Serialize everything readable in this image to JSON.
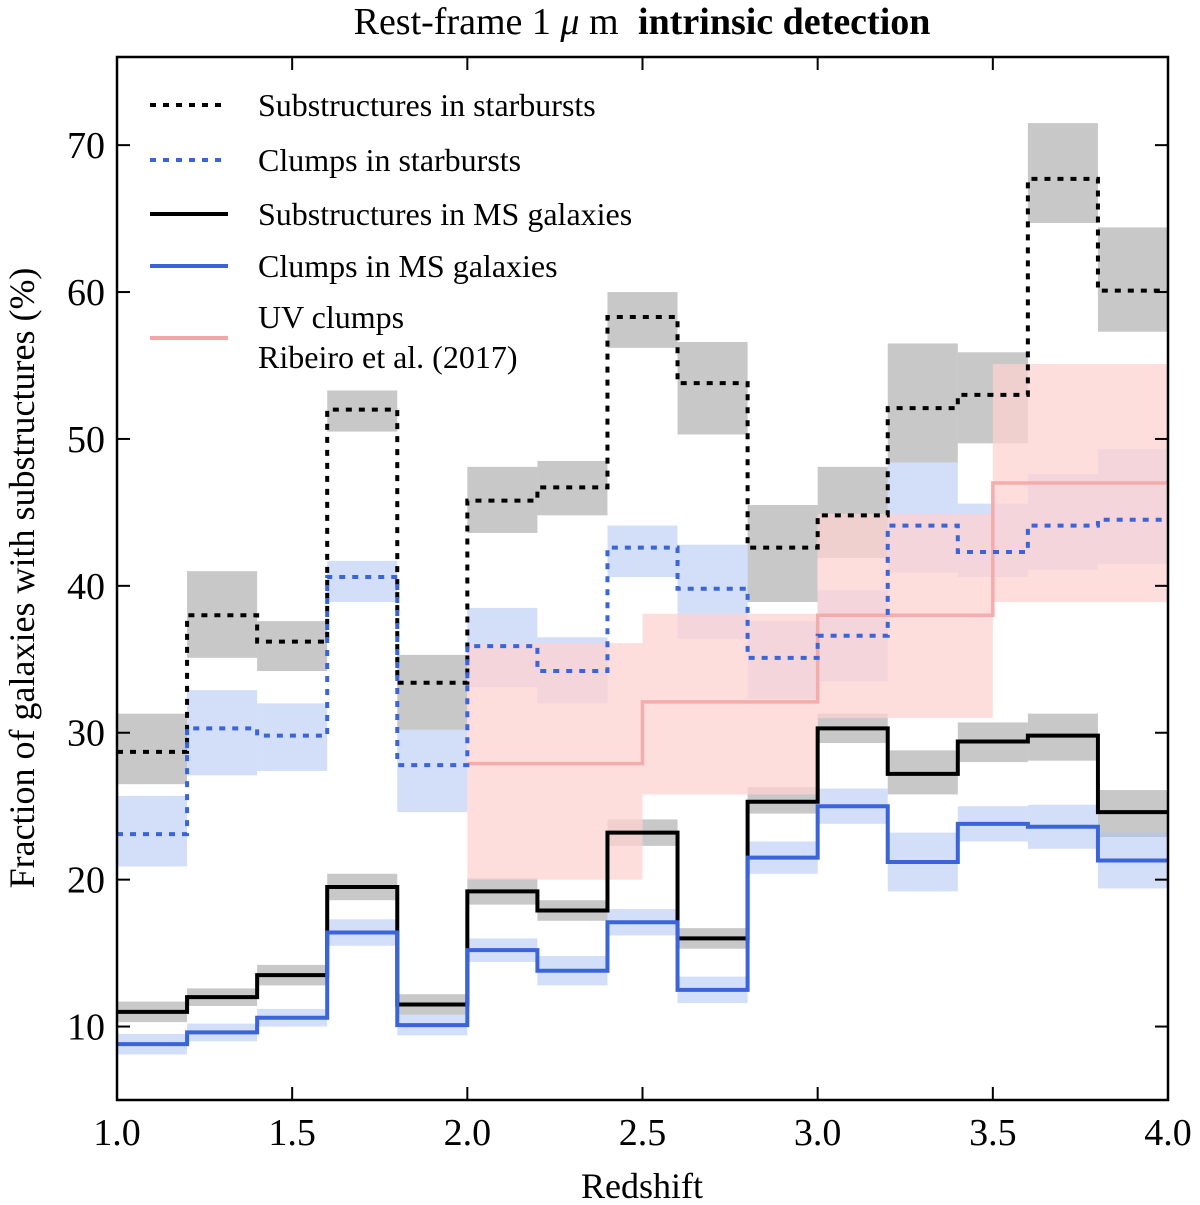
{
  "chart_data": {
    "type": "step",
    "title": {
      "normal": "Rest-frame 1",
      "mu": "μ",
      "unit": "m",
      "bold": "intrinsic detection"
    },
    "xlabel": "Redshift",
    "ylabel": "Fraction of galaxies with substructures (%)",
    "xlim": [
      1.0,
      4.0
    ],
    "ylim": [
      5,
      76
    ],
    "xticks": [
      1.0,
      1.5,
      2.0,
      2.5,
      3.0,
      3.5,
      4.0
    ],
    "xtick_labels": [
      "1.0",
      "1.5",
      "2.0",
      "2.5",
      "3.0",
      "3.5",
      "4.0"
    ],
    "yticks": [
      10,
      20,
      30,
      40,
      50,
      60,
      70
    ],
    "ytick_labels": [
      "10",
      "20",
      "30",
      "40",
      "50",
      "60",
      "70"
    ],
    "bin_edges": [
      1.0,
      1.2,
      1.4,
      1.6,
      1.8,
      2.0,
      2.2,
      2.4,
      2.6,
      2.8,
      3.0,
      3.2,
      3.4,
      3.6,
      3.8,
      4.0
    ],
    "series": [
      {
        "id": "ms-substructures",
        "name": "Substructures in MS galaxies",
        "color": "#000000",
        "band_color": "#b0b0b0",
        "style": "solid",
        "values": [
          11.0,
          12.0,
          13.5,
          19.5,
          11.5,
          19.2,
          17.9,
          23.2,
          16.0,
          25.3,
          30.3,
          27.2,
          29.4,
          29.8,
          24.6
        ],
        "lower": [
          10.3,
          11.4,
          12.8,
          18.6,
          10.8,
          18.3,
          17.2,
          22.3,
          15.3,
          24.5,
          29.3,
          25.8,
          28.0,
          28.1,
          22.9
        ],
        "upper": [
          11.7,
          12.6,
          14.2,
          20.4,
          12.2,
          20.1,
          18.6,
          24.1,
          16.7,
          26.3,
          31.3,
          28.8,
          30.7,
          31.3,
          26.1
        ]
      },
      {
        "id": "ms-clumps",
        "name": "Clumps in MS galaxies",
        "color": "#3a64d8",
        "band_color": "#aec2f2",
        "style": "solid",
        "values": [
          8.8,
          9.6,
          10.6,
          16.4,
          10.1,
          15.2,
          13.8,
          17.1,
          12.5,
          21.5,
          25.0,
          21.2,
          23.8,
          23.6,
          21.3
        ],
        "lower": [
          8.1,
          9.0,
          10.0,
          15.5,
          9.4,
          14.4,
          12.8,
          16.2,
          11.6,
          20.4,
          23.8,
          19.2,
          22.6,
          22.1,
          19.4
        ],
        "upper": [
          9.5,
          10.2,
          11.2,
          17.3,
          10.8,
          16.0,
          14.8,
          18.0,
          13.4,
          22.6,
          26.2,
          23.2,
          25.0,
          25.1,
          23.2
        ]
      },
      {
        "id": "sb-substructures",
        "name": "Substructures in starbursts",
        "color": "#000000",
        "band_color": "#b0b0b0",
        "style": "dotted",
        "values": [
          28.7,
          38.0,
          36.2,
          52.0,
          33.4,
          45.8,
          46.7,
          58.3,
          53.8,
          42.6,
          44.8,
          52.1,
          53.0,
          67.7,
          60.1
        ],
        "lower": [
          26.5,
          35.1,
          34.2,
          50.5,
          30.2,
          43.6,
          44.8,
          56.2,
          50.3,
          38.9,
          41.9,
          48.4,
          49.7,
          64.7,
          57.3
        ],
        "upper": [
          31.3,
          41.0,
          37.6,
          53.3,
          35.3,
          48.1,
          48.5,
          60.0,
          56.6,
          45.5,
          48.1,
          56.5,
          55.9,
          71.5,
          64.4
        ]
      },
      {
        "id": "sb-clumps",
        "name": "Clumps in starbursts",
        "color": "#3a64d8",
        "band_color": "#aec2f2",
        "style": "dotted",
        "values": [
          23.1,
          30.3,
          29.8,
          40.6,
          27.8,
          35.9,
          34.2,
          42.6,
          39.8,
          35.1,
          36.6,
          44.1,
          42.3,
          44.1,
          44.5
        ],
        "lower": [
          20.9,
          27.1,
          27.4,
          38.9,
          24.6,
          33.1,
          32.0,
          40.6,
          36.4,
          32.3,
          33.5,
          40.9,
          40.6,
          41.1,
          41.5
        ],
        "upper": [
          25.7,
          32.9,
          32.0,
          41.7,
          30.2,
          38.5,
          36.5,
          44.1,
          42.8,
          37.6,
          39.7,
          48.4,
          45.6,
          47.6,
          49.3
        ]
      },
      {
        "id": "uv-clumps",
        "name_line1": "UV clumps",
        "name_line2": "Ribeiro et al. (2017)",
        "color": "#f4a6a6",
        "band_color": "#fdd2d2",
        "style": "solid",
        "bin_edges": [
          2.0,
          2.5,
          3.0,
          3.5,
          4.0
        ],
        "values": [
          27.9,
          32.1,
          38.0,
          47.0
        ],
        "lower": [
          20.0,
          25.8,
          31.0,
          38.9
        ],
        "upper": [
          36.1,
          38.1,
          44.9,
          55.1
        ]
      }
    ],
    "legend": {
      "position": "upper-left",
      "order": [
        "sb-substructures",
        "sb-clumps",
        "ms-substructures",
        "ms-clumps",
        "uv-clumps"
      ]
    }
  }
}
